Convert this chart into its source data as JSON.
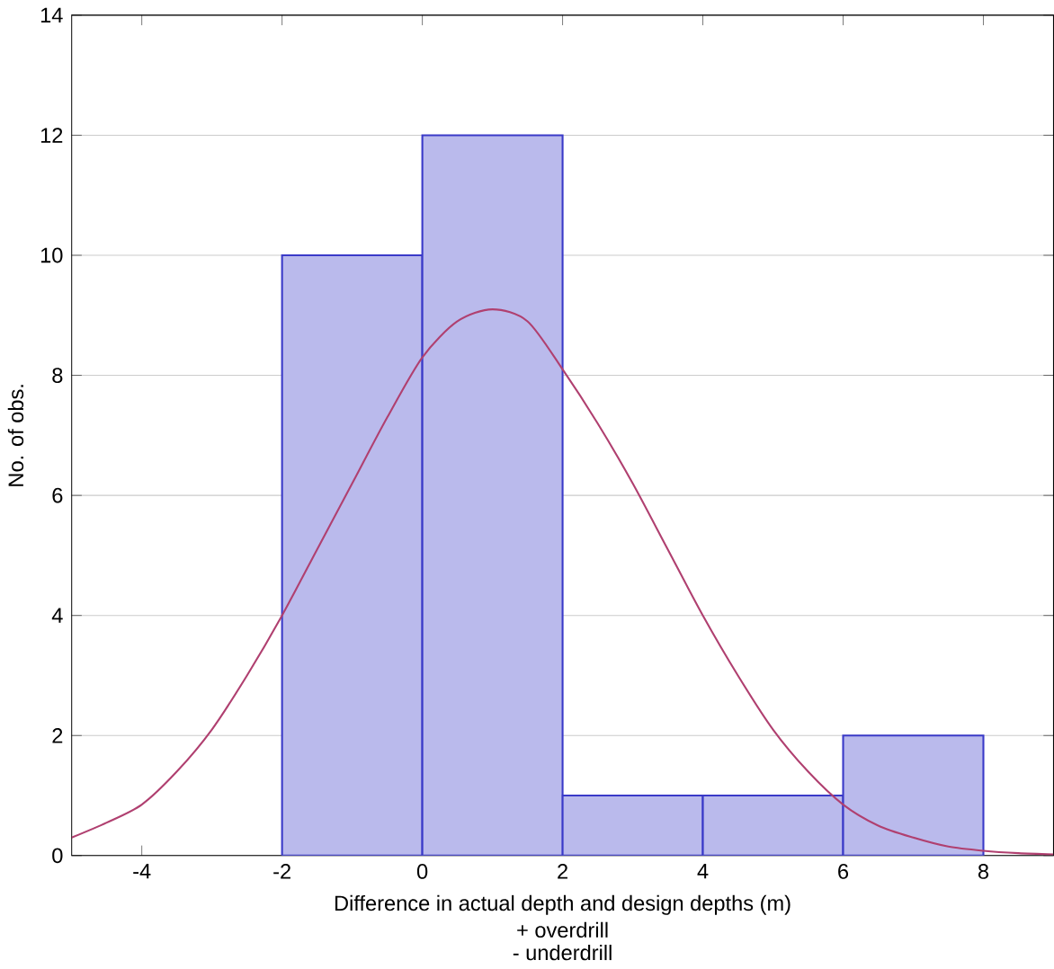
{
  "chart_data": {
    "type": "histogram",
    "xlabel": "Difference in actual depth and design depths (m)",
    "ylabel": "No. of obs.",
    "annotations": [
      "+ overdrill",
      "- underdrill"
    ],
    "bins": [
      -2,
      0,
      2,
      4,
      6,
      8
    ],
    "values": [
      10,
      12,
      1,
      1,
      2
    ],
    "color": "#3a3ac8",
    "series": [
      {
        "type": "line",
        "color": "#b04070",
        "x": [
          -5,
          -4.5,
          -4,
          -3.5,
          -3,
          -2.5,
          -2,
          -1.5,
          -1,
          -0.5,
          0,
          0.5,
          1,
          1.5,
          2,
          2.5,
          3,
          3.5,
          4,
          4.5,
          5,
          5.5,
          6,
          6.5,
          7,
          7.5,
          8,
          8.5,
          9
        ],
        "values": [
          0.3,
          0.55,
          0.85,
          1.4,
          2.1,
          3.0,
          4.0,
          5.1,
          6.2,
          7.3,
          8.3,
          8.9,
          9.1,
          8.9,
          8.1,
          7.2,
          6.2,
          5.1,
          4.0,
          3.0,
          2.1,
          1.4,
          0.85,
          0.5,
          0.3,
          0.15,
          0.08,
          0.04,
          0.02
        ]
      }
    ],
    "xlim": [
      -5,
      9
    ],
    "ylim": [
      0,
      14
    ],
    "xticks": [
      -4,
      -2,
      0,
      2,
      4,
      6,
      8
    ],
    "yticks": [
      0,
      2,
      4,
      6,
      8,
      10,
      12,
      14
    ],
    "grid": "y"
  }
}
